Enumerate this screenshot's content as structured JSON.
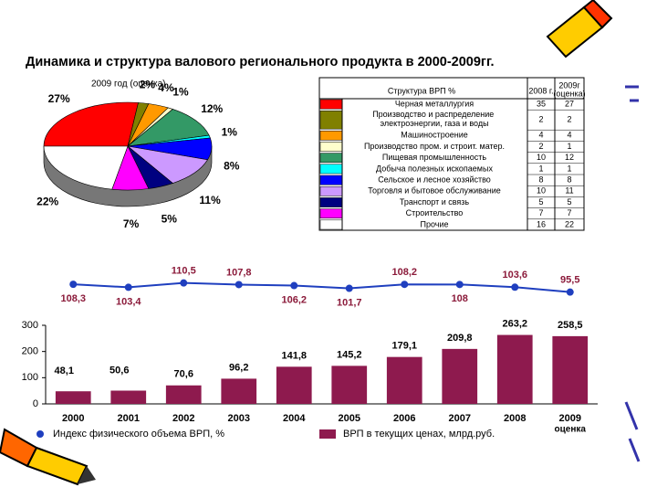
{
  "title": "Динамика и структура валового регионального продукта в 2000-2009гг.",
  "table": {
    "header": [
      "Структура ВРП %",
      "2008 г.",
      "2009г",
      "(оценка)"
    ],
    "rows": [
      [
        "Черная металлургия",
        "35",
        "27"
      ],
      [
        "Производство и распределение электроэнергии, газа и воды",
        "2",
        "2"
      ],
      [
        "Машиностроение",
        "4",
        "4"
      ],
      [
        "Производство пром. и строит. матер.",
        "2",
        "1"
      ],
      [
        "Пищевая промышленность",
        "10",
        "12"
      ],
      [
        "Добыча полезных ископаемых",
        "1",
        "1"
      ],
      [
        "Сельское и лесное хозяйство",
        "8",
        "8"
      ],
      [
        "Торговля и бытовое обслуживание",
        "10",
        "11"
      ],
      [
        "Транспорт и связь",
        "5",
        "5"
      ],
      [
        "Строительство",
        "7",
        "7"
      ],
      [
        "Прочие",
        "16",
        "22"
      ]
    ]
  },
  "chart_data": [
    {
      "type": "pie",
      "title": "2009 год (оценка)",
      "values": [
        27,
        2,
        4,
        1,
        12,
        1,
        8,
        11,
        5,
        7,
        22
      ],
      "value_labels": [
        "27%",
        "2%",
        "4%",
        "1%",
        "12%",
        "1%",
        "8%",
        "11%",
        "5%",
        "7%",
        "22%"
      ],
      "colors": [
        "#ff0000",
        "#808000",
        "#ff9900",
        "#ffffcc",
        "#339966",
        "#00ffff",
        "#0000ff",
        "#cc99ff",
        "#000080",
        "#ff00ff",
        "#ffffff"
      ]
    },
    {
      "type": "line",
      "name": "Индекс физического объема ВРП, %",
      "color": "#1f3fbf",
      "values": [
        108.3,
        103.4,
        110.5,
        107.8,
        106.2,
        101.7,
        108.2,
        108,
        103.6,
        95.5
      ],
      "value_labels": [
        "108,3",
        "103,4",
        "110,5",
        "107,8",
        "106,2",
        "101,7",
        "108,2",
        "108",
        "103,6",
        "95,5"
      ],
      "ylim": [
        80,
        125
      ]
    },
    {
      "type": "bar",
      "name": "ВРП в текущих ценах, млрд.руб.",
      "color": "#8e1a4e",
      "categories": [
        "2000",
        "2001",
        "2002",
        "2003",
        "2004",
        "2005",
        "2006",
        "2007",
        "2008",
        "2009"
      ],
      "category_note": "оценка",
      "values": [
        48.1,
        50.6,
        70.6,
        96.2,
        141.8,
        145.2,
        179.1,
        209.8,
        263.2,
        258.5
      ],
      "value_labels": [
        "48,1",
        "50,6",
        "70,6",
        "96,2",
        "141,8",
        "145,2",
        "179,1",
        "209,8",
        "263,2",
        "258,5"
      ],
      "ylim": [
        0,
        300
      ],
      "yticks": [
        0,
        100,
        200,
        300
      ]
    }
  ]
}
